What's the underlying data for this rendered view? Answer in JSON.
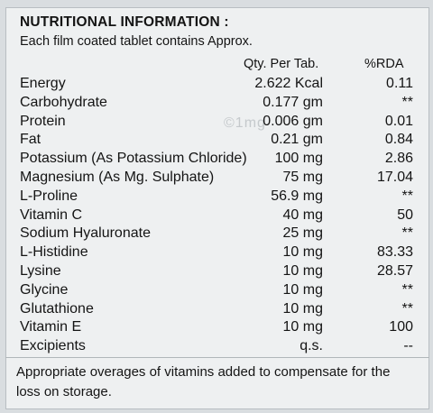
{
  "heading": "NUTRITIONAL INFORMATION :",
  "subheading": "Each film coated tablet contains Approx.",
  "columns": {
    "qty": "Qty. Per Tab.",
    "rda": "%RDA"
  },
  "rows": [
    {
      "name": "Energy",
      "qty": "2.622 Kcal",
      "rda": "0.11"
    },
    {
      "name": "Carbohydrate",
      "qty": "0.177 gm",
      "rda": "**"
    },
    {
      "name": "Protein",
      "qty": "0.006 gm",
      "rda": "0.01"
    },
    {
      "name": "Fat",
      "qty": "0.21 gm",
      "rda": "0.84"
    },
    {
      "name": "Potassium (As Potassium Chloride)",
      "qty": "100 mg",
      "rda": "2.86"
    },
    {
      "name": "Magnesium (As Mg. Sulphate)",
      "qty": "75 mg",
      "rda": "17.04"
    },
    {
      "name": "L-Proline",
      "qty": "56.9 mg",
      "rda": "**"
    },
    {
      "name": "Vitamin C",
      "qty": "40 mg",
      "rda": "50"
    },
    {
      "name": "Sodium Hyaluronate",
      "qty": "25 mg",
      "rda": "**"
    },
    {
      "name": "L-Histidine",
      "qty": "10 mg",
      "rda": "83.33"
    },
    {
      "name": "Lysine",
      "qty": "10 mg",
      "rda": "28.57"
    },
    {
      "name": "Glycine",
      "qty": "10 mg",
      "rda": "**"
    },
    {
      "name": "Glutathione",
      "qty": "10 mg",
      "rda": "**"
    },
    {
      "name": "Vitamin E",
      "qty": "10 mg",
      "rda": "100"
    },
    {
      "name": "Excipients",
      "qty": "q.s.",
      "rda": "--"
    }
  ],
  "footnote": "Appropriate overages of vitamins added to compensate for the loss on storage.",
  "watermark": "©1mg"
}
